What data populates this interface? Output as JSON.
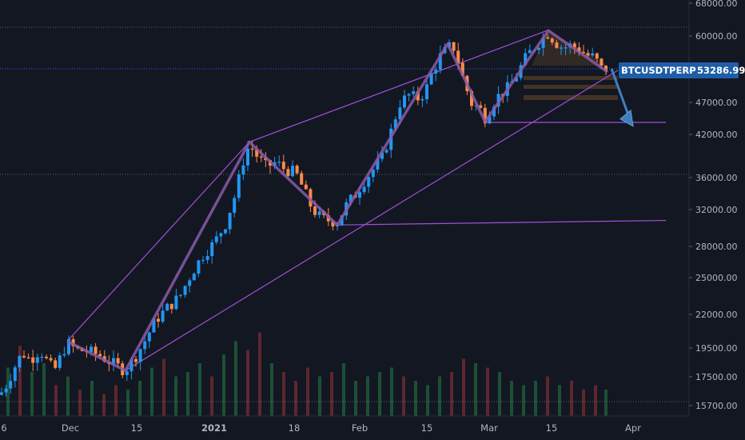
{
  "chart_data": {
    "type": "candlestick",
    "symbol": "BTCUSDTPERP",
    "last_price": "53286.99",
    "y_scale": "log",
    "ylim": [
      15300,
      68000
    ],
    "y_ticks": [
      "68000.00",
      "60000.00",
      "47000.00",
      "42000.00",
      "36000.00",
      "32000.00",
      "28000.00",
      "25000.00",
      "22000.00",
      "19500.00",
      "17500.00",
      "15700.00"
    ],
    "x_ticks": [
      "6",
      "Dec",
      "15",
      "2021",
      "18",
      "Feb",
      "15",
      "Mar",
      "15",
      "Apr"
    ],
    "grid": false,
    "colors": {
      "background": "#131722",
      "up_candle": "#2196f3",
      "down_candle": "#ff8a47",
      "trendline": "#a050d8",
      "zigzag": "#8a5aa8",
      "label_bg": "#1e5ea8",
      "arrow": "#3d7fc2",
      "axis_text": "#b2b5be",
      "volume_up": "#1f5a3a",
      "volume_down": "#6b2a30"
    },
    "price_path": [
      [
        0,
        16400
      ],
      [
        8,
        17000
      ],
      [
        18,
        18100
      ],
      [
        28,
        19100
      ],
      [
        38,
        18600
      ],
      [
        50,
        19300
      ],
      [
        60,
        18400
      ],
      [
        68,
        17900
      ],
      [
        75,
        18700
      ],
      [
        84,
        19800
      ],
      [
        95,
        19300
      ],
      [
        110,
        19200
      ],
      [
        125,
        18900
      ],
      [
        140,
        18400
      ],
      [
        156,
        17900
      ],
      [
        168,
        18700
      ],
      [
        180,
        19800
      ],
      [
        195,
        21500
      ],
      [
        210,
        22500
      ],
      [
        225,
        23400
      ],
      [
        240,
        25500
      ],
      [
        255,
        27300
      ],
      [
        268,
        28400
      ],
      [
        282,
        30400
      ],
      [
        295,
        34000
      ],
      [
        305,
        38500
      ],
      [
        312,
        40500
      ],
      [
        322,
        38800
      ],
      [
        333,
        37400
      ],
      [
        345,
        38000
      ],
      [
        357,
        37000
      ],
      [
        370,
        36600
      ],
      [
        380,
        34400
      ],
      [
        390,
        32200
      ],
      [
        402,
        31000
      ],
      [
        412,
        30800
      ],
      [
        422,
        30600
      ],
      [
        432,
        32400
      ],
      [
        444,
        33800
      ],
      [
        456,
        35600
      ],
      [
        468,
        37200
      ],
      [
        478,
        38600
      ],
      [
        488,
        42000
      ],
      [
        500,
        47000
      ],
      [
        512,
        48500
      ],
      [
        522,
        47800
      ],
      [
        532,
        49000
      ],
      [
        540,
        52300
      ],
      [
        550,
        55600
      ],
      [
        558,
        57000
      ],
      [
        566,
        58300
      ],
      [
        572,
        55500
      ],
      [
        580,
        51000
      ],
      [
        590,
        47000
      ],
      [
        600,
        46200
      ],
      [
        608,
        44500
      ],
      [
        616,
        47000
      ],
      [
        626,
        48700
      ],
      [
        636,
        49800
      ],
      [
        646,
        52000
      ],
      [
        656,
        55000
      ],
      [
        666,
        57300
      ],
      [
        676,
        59000
      ],
      [
        686,
        60700
      ],
      [
        694,
        58800
      ],
      [
        704,
        57500
      ],
      [
        714,
        58000
      ],
      [
        724,
        57300
      ],
      [
        734,
        56000
      ],
      [
        744,
        55500
      ],
      [
        752,
        53300
      ],
      [
        760,
        53287
      ]
    ],
    "zigzag": [
      [
        84,
        19900
      ],
      [
        157,
        17900
      ],
      [
        312,
        40900
      ],
      [
        422,
        30300
      ],
      [
        560,
        58300
      ],
      [
        607,
        44000
      ],
      [
        686,
        61200
      ],
      [
        760,
        52700
      ]
    ],
    "trendlines": [
      {
        "from": [
          84,
          19900
        ],
        "to": [
          312,
          40900
        ]
      },
      {
        "from": [
          312,
          40900
        ],
        "to": [
          686,
          61300
        ]
      },
      {
        "from": [
          157,
          17900
        ],
        "to": [
          773,
          53000
        ]
      },
      {
        "from": [
          422,
          30300
        ],
        "to": [
          833,
          30800
        ]
      },
      {
        "from": [
          607,
          43900
        ],
        "to": [
          833,
          43900
        ]
      }
    ],
    "projection_arrow": {
      "from": [
        765,
        53300
      ],
      "to": [
        792,
        43300
      ]
    },
    "volume": [
      {
        "x": 10,
        "v": 0.55,
        "up": true
      },
      {
        "x": 25,
        "v": 0.8,
        "up": false
      },
      {
        "x": 40,
        "v": 0.5,
        "up": true
      },
      {
        "x": 55,
        "v": 0.6,
        "up": true
      },
      {
        "x": 70,
        "v": 0.35,
        "up": false
      },
      {
        "x": 85,
        "v": 0.45,
        "up": true
      },
      {
        "x": 100,
        "v": 0.3,
        "up": false
      },
      {
        "x": 115,
        "v": 0.4,
        "up": true
      },
      {
        "x": 130,
        "v": 0.25,
        "up": false
      },
      {
        "x": 145,
        "v": 0.35,
        "up": false
      },
      {
        "x": 160,
        "v": 0.3,
        "up": true
      },
      {
        "x": 175,
        "v": 0.4,
        "up": true
      },
      {
        "x": 190,
        "v": 0.55,
        "up": true
      },
      {
        "x": 205,
        "v": 0.65,
        "up": false
      },
      {
        "x": 220,
        "v": 0.45,
        "up": true
      },
      {
        "x": 235,
        "v": 0.5,
        "up": true
      },
      {
        "x": 250,
        "v": 0.6,
        "up": true
      },
      {
        "x": 265,
        "v": 0.45,
        "up": false
      },
      {
        "x": 280,
        "v": 0.7,
        "up": true
      },
      {
        "x": 295,
        "v": 0.85,
        "up": true
      },
      {
        "x": 310,
        "v": 0.75,
        "up": false
      },
      {
        "x": 325,
        "v": 0.95,
        "up": false
      },
      {
        "x": 340,
        "v": 0.6,
        "up": true
      },
      {
        "x": 355,
        "v": 0.5,
        "up": false
      },
      {
        "x": 370,
        "v": 0.4,
        "up": false
      },
      {
        "x": 385,
        "v": 0.55,
        "up": false
      },
      {
        "x": 400,
        "v": 0.45,
        "up": true
      },
      {
        "x": 415,
        "v": 0.5,
        "up": false
      },
      {
        "x": 430,
        "v": 0.6,
        "up": true
      },
      {
        "x": 445,
        "v": 0.4,
        "up": true
      },
      {
        "x": 460,
        "v": 0.45,
        "up": true
      },
      {
        "x": 475,
        "v": 0.5,
        "up": true
      },
      {
        "x": 490,
        "v": 0.55,
        "up": true
      },
      {
        "x": 505,
        "v": 0.45,
        "up": false
      },
      {
        "x": 520,
        "v": 0.4,
        "up": true
      },
      {
        "x": 535,
        "v": 0.35,
        "up": true
      },
      {
        "x": 550,
        "v": 0.45,
        "up": true
      },
      {
        "x": 565,
        "v": 0.5,
        "up": false
      },
      {
        "x": 580,
        "v": 0.65,
        "up": false
      },
      {
        "x": 595,
        "v": 0.6,
        "up": true
      },
      {
        "x": 610,
        "v": 0.55,
        "up": false
      },
      {
        "x": 625,
        "v": 0.5,
        "up": true
      },
      {
        "x": 640,
        "v": 0.4,
        "up": true
      },
      {
        "x": 655,
        "v": 0.35,
        "up": true
      },
      {
        "x": 670,
        "v": 0.4,
        "up": true
      },
      {
        "x": 685,
        "v": 0.45,
        "up": false
      },
      {
        "x": 700,
        "v": 0.35,
        "up": true
      },
      {
        "x": 715,
        "v": 0.4,
        "up": false
      },
      {
        "x": 730,
        "v": 0.3,
        "up": false
      },
      {
        "x": 745,
        "v": 0.35,
        "up": false
      },
      {
        "x": 758,
        "v": 0.3,
        "up": true
      }
    ]
  }
}
